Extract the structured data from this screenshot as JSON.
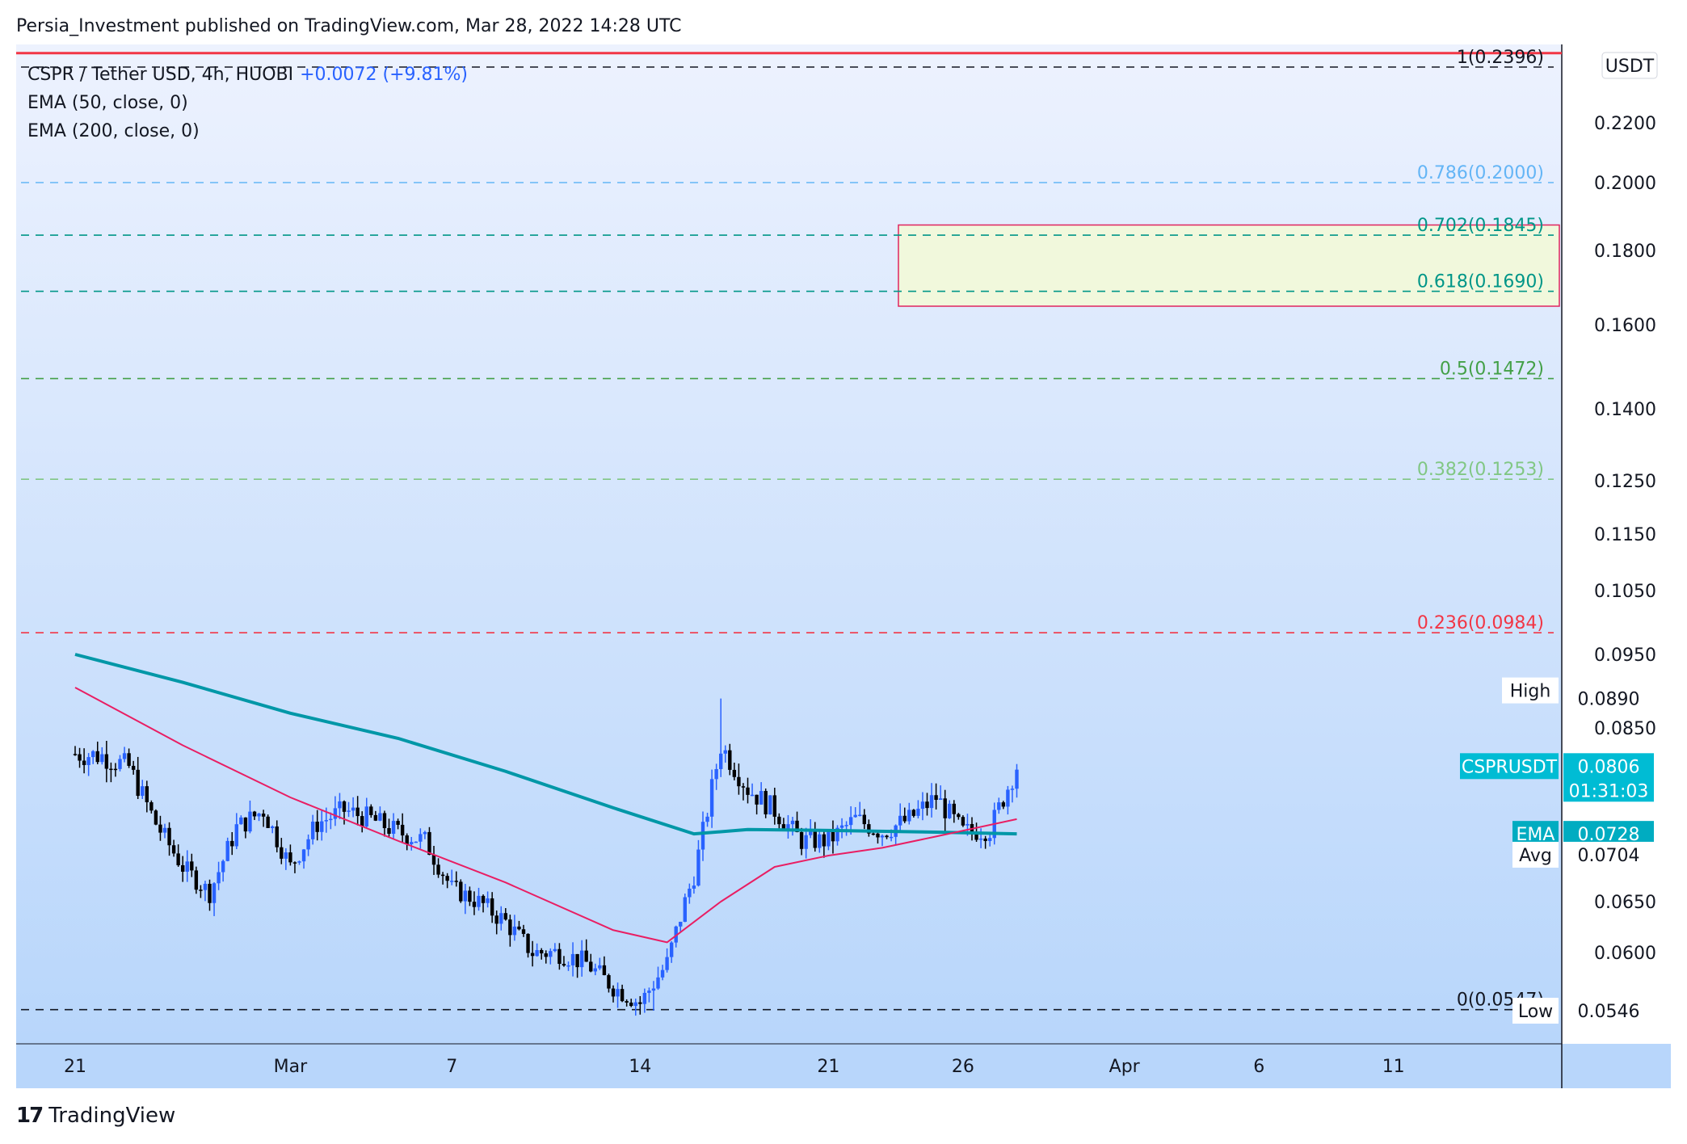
{
  "header": {
    "published": "Persia_Investment published on TradingView.com, Mar 28, 2022 14:28 UTC"
  },
  "legend": {
    "symbol": "CSPR / Tether USD, 4h, HUOBI",
    "change": "+0.0072 (+9.81%)",
    "ema50": "EMA (50, close, 0)",
    "ema200": "EMA (200, close, 0)"
  },
  "footer": {
    "logo": "TradingView",
    "logo_mark": "17"
  },
  "colors": {
    "bg_top": "#edf2fe",
    "bg_bottom": "#b8d6fb",
    "candle_up": "#2962ff",
    "candle_down": "#000000",
    "ema50": "#e91e63",
    "ema200": "#0097a7",
    "zone_fill": "#f1f8dc",
    "zone_border": "#e0245e"
  },
  "chart_data": {
    "type": "candlestick",
    "symbol": "CSPRUSDT",
    "currency": "USDT",
    "ylim": [
      0.051,
      0.245
    ],
    "y_ticks": [
      "0.2200",
      "0.2000",
      "0.1800",
      "0.1600",
      "0.1400",
      "0.1250",
      "0.1150",
      "0.1050",
      "0.0950",
      "0.0850",
      "0.0650",
      "0.0600"
    ],
    "x_ticks": [
      {
        "label": "21",
        "day": 0
      },
      {
        "label": "Mar",
        "day": 8
      },
      {
        "label": "7",
        "day": 14
      },
      {
        "label": "14",
        "day": 21
      },
      {
        "label": "21",
        "day": 28
      },
      {
        "label": "26",
        "day": 33
      },
      {
        "label": "Apr",
        "day": 39
      },
      {
        "label": "6",
        "day": 44
      },
      {
        "label": "11",
        "day": 49
      }
    ],
    "fib_levels": [
      {
        "label": "1(0.2396)",
        "ratio": "1",
        "value": 0.2396,
        "color": "#131722"
      },
      {
        "label": "0.786(0.2000)",
        "ratio": "0.786",
        "value": 0.2,
        "color": "#64b5f6"
      },
      {
        "label": "0.702(0.1845)",
        "ratio": "0.702",
        "value": 0.1845,
        "color": "#009688"
      },
      {
        "label": "0.618(0.1690)",
        "ratio": "0.618",
        "value": 0.169,
        "color": "#009688"
      },
      {
        "label": "0.5(0.1472)",
        "ratio": "0.5",
        "value": 0.1472,
        "color": "#43a047"
      },
      {
        "label": "0.382(0.1253)",
        "ratio": "0.382",
        "value": 0.1253,
        "color": "#81c784"
      },
      {
        "label": "0.236(0.0984)",
        "ratio": "0.236",
        "value": 0.0984,
        "color": "#f23645"
      },
      {
        "label": "0(0.0547)",
        "ratio": "0",
        "value": 0.0547,
        "color": "#131722"
      }
    ],
    "top_line": {
      "value": 0.2445,
      "color": "#f23645"
    },
    "zone": {
      "x_start_day": 30.6,
      "x_end_day": 53,
      "y_low": 0.165,
      "y_high": 0.1875
    },
    "price_tags": {
      "high": {
        "label": "High",
        "value": "0.0890",
        "y": 0.089
      },
      "current": {
        "label": "CSPRUSDT",
        "value": "0.0806",
        "countdown": "01:31:03",
        "y": 0.0806
      },
      "ema": {
        "label": "EMA",
        "value": "0.0728",
        "y": 0.0728
      },
      "avg": {
        "label": "Avg",
        "value": "0.0704",
        "y": 0.0704
      },
      "low": {
        "label": "Low",
        "value": "0.0546",
        "y": 0.0546
      }
    },
    "ohlc_close_path": [
      {
        "day": 0,
        "close": 0.082
      },
      {
        "day": 1,
        "close": 0.0818
      },
      {
        "day": 2,
        "close": 0.0805
      },
      {
        "day": 3,
        "close": 0.074
      },
      {
        "day": 4,
        "close": 0.069
      },
      {
        "day": 5,
        "close": 0.066
      },
      {
        "day": 6,
        "close": 0.0735
      },
      {
        "day": 7,
        "close": 0.0755
      },
      {
        "day": 8,
        "close": 0.069
      },
      {
        "day": 9,
        "close": 0.074
      },
      {
        "day": 10,
        "close": 0.0755
      },
      {
        "day": 11,
        "close": 0.0745
      },
      {
        "day": 12,
        "close": 0.073
      },
      {
        "day": 13,
        "close": 0.072
      },
      {
        "day": 14,
        "close": 0.0665
      },
      {
        "day": 15,
        "close": 0.065
      },
      {
        "day": 16,
        "close": 0.063
      },
      {
        "day": 17,
        "close": 0.06
      },
      {
        "day": 18,
        "close": 0.06
      },
      {
        "day": 19,
        "close": 0.059
      },
      {
        "day": 20,
        "close": 0.0568
      },
      {
        "day": 21,
        "close": 0.0553
      },
      {
        "day": 22,
        "close": 0.059
      },
      {
        "day": 23,
        "close": 0.068
      },
      {
        "day": 24,
        "close": 0.083
      },
      {
        "day": 25,
        "close": 0.078
      },
      {
        "day": 26,
        "close": 0.0755
      },
      {
        "day": 27,
        "close": 0.072
      },
      {
        "day": 28,
        "close": 0.072
      },
      {
        "day": 29,
        "close": 0.0745
      },
      {
        "day": 30,
        "close": 0.073
      },
      {
        "day": 31,
        "close": 0.0745
      },
      {
        "day": 32,
        "close": 0.077
      },
      {
        "day": 33,
        "close": 0.073
      },
      {
        "day": 34,
        "close": 0.0733
      },
      {
        "day": 35,
        "close": 0.0806
      }
    ],
    "ema50": [
      {
        "day": 0,
        "value": 0.0905
      },
      {
        "day": 4,
        "value": 0.083
      },
      {
        "day": 8,
        "value": 0.077
      },
      {
        "day": 12,
        "value": 0.072
      },
      {
        "day": 16,
        "value": 0.0672
      },
      {
        "day": 20,
        "value": 0.0622
      },
      {
        "day": 22,
        "value": 0.061
      },
      {
        "day": 24,
        "value": 0.065
      },
      {
        "day": 26,
        "value": 0.069
      },
      {
        "day": 28,
        "value": 0.0703
      },
      {
        "day": 30,
        "value": 0.0712
      },
      {
        "day": 32,
        "value": 0.0725
      },
      {
        "day": 35,
        "value": 0.0745
      }
    ],
    "ema200": [
      {
        "day": 0,
        "value": 0.095
      },
      {
        "day": 4,
        "value": 0.0912
      },
      {
        "day": 8,
        "value": 0.087
      },
      {
        "day": 12,
        "value": 0.0838
      },
      {
        "day": 16,
        "value": 0.08
      },
      {
        "day": 20,
        "value": 0.0758
      },
      {
        "day": 23,
        "value": 0.0728
      },
      {
        "day": 25,
        "value": 0.0733
      },
      {
        "day": 28,
        "value": 0.0732
      },
      {
        "day": 32,
        "value": 0.073
      },
      {
        "day": 35,
        "value": 0.0728
      }
    ]
  }
}
